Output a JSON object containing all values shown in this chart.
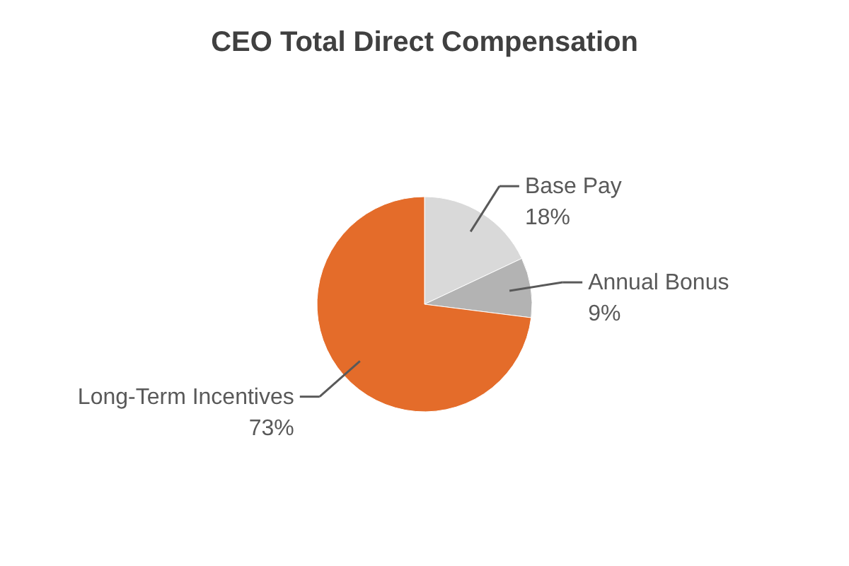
{
  "chart_data": {
    "type": "pie",
    "title": "CEO Total Direct Compensation",
    "categories": [
      "Base Pay",
      "Annual Bonus",
      "Long-Term Incentives"
    ],
    "values": [
      18,
      9,
      73
    ],
    "value_labels": [
      "18%",
      "9%",
      "73%"
    ],
    "colors": [
      "#d9d9d9",
      "#b3b3b3",
      "#e46c2a"
    ]
  }
}
